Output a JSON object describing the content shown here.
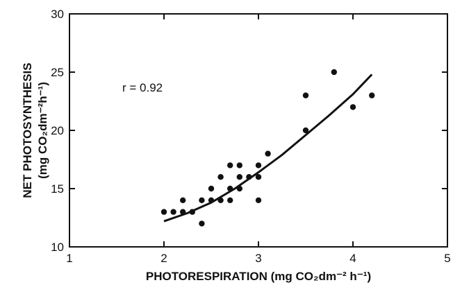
{
  "chart_data": {
    "type": "scatter",
    "xlabel": "PHOTORESPIRATION (mg CO₂dm⁻² h⁻¹)",
    "ylabel_line1": "NET PHOTOSYNTHESIS",
    "ylabel_line2": "(mg CO₂dm⁻²h⁻¹)",
    "xlim": [
      1,
      5
    ],
    "ylim": [
      10,
      30
    ],
    "x_ticks": [
      1,
      2,
      3,
      4,
      5
    ],
    "y_ticks": [
      10,
      15,
      20,
      25,
      30
    ],
    "grid": false,
    "annotation": "r = 0.92",
    "points": [
      {
        "x": 2.0,
        "y": 13
      },
      {
        "x": 2.1,
        "y": 13
      },
      {
        "x": 2.2,
        "y": 13
      },
      {
        "x": 2.2,
        "y": 14
      },
      {
        "x": 2.3,
        "y": 13
      },
      {
        "x": 2.4,
        "y": 12
      },
      {
        "x": 2.4,
        "y": 14
      },
      {
        "x": 2.5,
        "y": 14
      },
      {
        "x": 2.5,
        "y": 15
      },
      {
        "x": 2.6,
        "y": 14
      },
      {
        "x": 2.6,
        "y": 16
      },
      {
        "x": 2.7,
        "y": 14
      },
      {
        "x": 2.7,
        "y": 15
      },
      {
        "x": 2.7,
        "y": 17
      },
      {
        "x": 2.8,
        "y": 15
      },
      {
        "x": 2.8,
        "y": 16
      },
      {
        "x": 2.8,
        "y": 17
      },
      {
        "x": 2.9,
        "y": 16
      },
      {
        "x": 3.0,
        "y": 14
      },
      {
        "x": 3.0,
        "y": 16
      },
      {
        "x": 3.0,
        "y": 17
      },
      {
        "x": 3.1,
        "y": 18
      },
      {
        "x": 3.5,
        "y": 20
      },
      {
        "x": 3.5,
        "y": 23
      },
      {
        "x": 3.8,
        "y": 25
      },
      {
        "x": 4.0,
        "y": 22
      },
      {
        "x": 4.2,
        "y": 23
      }
    ],
    "fit_curve": [
      {
        "x": 2.0,
        "y": 12.2
      },
      {
        "x": 2.25,
        "y": 12.9
      },
      {
        "x": 2.5,
        "y": 13.8
      },
      {
        "x": 2.75,
        "y": 15.0
      },
      {
        "x": 3.0,
        "y": 16.4
      },
      {
        "x": 3.25,
        "y": 17.9
      },
      {
        "x": 3.5,
        "y": 19.6
      },
      {
        "x": 3.75,
        "y": 21.3
      },
      {
        "x": 4.0,
        "y": 23.1
      },
      {
        "x": 4.2,
        "y": 24.8
      }
    ]
  }
}
